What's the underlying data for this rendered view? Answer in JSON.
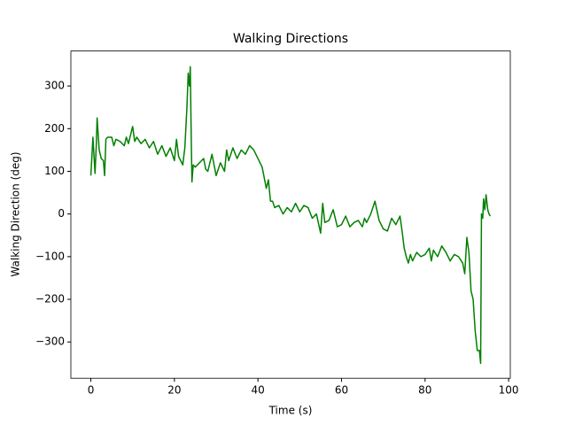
{
  "chart_data": {
    "type": "line",
    "title": "Walking Directions",
    "xlabel": "Time (s)",
    "ylabel": "Walking Direction (deg)",
    "xlim": [
      -4.78,
      100.4
    ],
    "ylim": [
      -385,
      382
    ],
    "xticks": [
      0,
      20,
      40,
      60,
      80,
      100
    ],
    "yticks": [
      {
        "value": -300,
        "label": "−300"
      },
      {
        "value": -200,
        "label": "−200"
      },
      {
        "value": -100,
        "label": "−100"
      },
      0,
      100,
      200,
      300
    ],
    "series": [
      {
        "color": "#008000",
        "x": [
          0,
          0.5,
          1,
          1.3,
          1.5,
          2,
          2.5,
          3,
          3.3,
          3.6,
          4,
          5,
          5.5,
          6,
          7,
          8,
          8.5,
          9,
          10,
          10.5,
          11,
          12,
          13,
          14,
          15,
          16,
          17,
          18,
          19,
          20,
          20.5,
          21,
          22,
          22.5,
          23,
          23.3,
          23.6,
          23.8,
          24,
          24.2,
          24.5,
          25,
          26,
          27,
          27.5,
          28,
          29,
          30,
          31,
          32,
          32.5,
          33,
          34,
          35,
          36,
          37,
          38,
          39,
          40,
          41,
          42,
          42.5,
          43,
          43.5,
          44,
          45,
          46,
          47,
          48,
          49,
          50,
          51,
          52,
          53,
          54,
          55,
          55.5,
          56,
          57,
          58,
          59,
          60,
          61,
          62,
          63,
          64,
          65,
          65.5,
          66,
          67,
          68,
          69,
          70,
          71,
          72,
          73,
          74,
          74.5,
          75,
          75.5,
          76,
          76.5,
          77,
          78,
          79,
          80,
          81,
          81.5,
          82,
          83,
          84,
          85,
          86,
          87,
          88,
          89,
          89.5,
          90,
          90.5,
          91,
          91.5,
          92,
          92.5,
          93,
          93.3,
          93.5,
          93.8,
          94,
          94.3,
          94.6,
          95,
          95.3,
          95.6
        ],
        "values": [
          90,
          180,
          95,
          160,
          225,
          150,
          130,
          125,
          90,
          175,
          180,
          180,
          160,
          175,
          170,
          160,
          180,
          165,
          205,
          170,
          180,
          165,
          175,
          155,
          170,
          140,
          160,
          135,
          155,
          125,
          175,
          135,
          115,
          155,
          250,
          330,
          300,
          345,
          200,
          75,
          115,
          110,
          120,
          130,
          105,
          100,
          140,
          90,
          120,
          100,
          150,
          125,
          155,
          130,
          150,
          140,
          160,
          150,
          130,
          110,
          60,
          80,
          30,
          30,
          15,
          20,
          0,
          15,
          5,
          25,
          5,
          20,
          15,
          -10,
          0,
          -45,
          25,
          -20,
          -15,
          10,
          -30,
          -25,
          -5,
          -30,
          -20,
          -15,
          -30,
          -10,
          -20,
          0,
          30,
          -15,
          -35,
          -40,
          -10,
          -25,
          -5,
          -40,
          -80,
          -100,
          -115,
          -95,
          -110,
          -90,
          -100,
          -95,
          -80,
          -110,
          -85,
          -100,
          -75,
          -90,
          -110,
          -95,
          -100,
          -115,
          -140,
          -55,
          -90,
          -180,
          -200,
          -275,
          -320,
          -320,
          -350,
          0,
          -10,
          35,
          10,
          45,
          10,
          0,
          -5
        ]
      }
    ]
  }
}
